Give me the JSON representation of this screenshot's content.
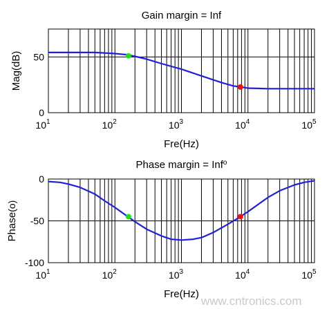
{
  "chart_data": [
    {
      "type": "line",
      "title": "Gain margin = Inf",
      "xlabel": "Fre(Hz)",
      "ylabel": "Mag(dB)",
      "xscale": "log",
      "xlim": [
        10,
        100000
      ],
      "ylim": [
        0,
        75
      ],
      "xticks": [
        {
          "base": "10",
          "exp": "1"
        },
        {
          "base": "10",
          "exp": "2"
        },
        {
          "base": "10",
          "exp": "3"
        },
        {
          "base": "10",
          "exp": "4"
        },
        {
          "base": "10",
          "exp": "5"
        }
      ],
      "yticks": [
        "50",
        "0"
      ],
      "grid": true,
      "series": [
        {
          "color": "#1f1fdf",
          "x": [
            10,
            20,
            50,
            100,
            150,
            200,
            300,
            500,
            1000,
            2000,
            4000,
            6000,
            8000,
            10000,
            20000,
            50000,
            100000
          ],
          "y": [
            54,
            54,
            54,
            53,
            52,
            50.5,
            48,
            44,
            39,
            33,
            27,
            24,
            23,
            22,
            21.5,
            21.5,
            21.5
          ]
        }
      ],
      "markers": [
        {
          "x": 160,
          "y": 51,
          "color": "#22dd22"
        },
        {
          "x": 7700,
          "y": 23,
          "color": "#ee1111"
        }
      ]
    },
    {
      "type": "line",
      "title": "Phase margin = Inf",
      "title_suffix": "o",
      "xlabel": "Fre(Hz)",
      "ylabel": "Phase",
      "ylabel_unit": "(o)",
      "xscale": "log",
      "xlim": [
        10,
        100000
      ],
      "ylim": [
        -100,
        0
      ],
      "xticks": [
        {
          "base": "10",
          "exp": "1"
        },
        {
          "base": "10",
          "exp": "2"
        },
        {
          "base": "10",
          "exp": "3"
        },
        {
          "base": "10",
          "exp": "4"
        },
        {
          "base": "10",
          "exp": "5"
        }
      ],
      "yticks": [
        "0",
        "-50",
        "-100"
      ],
      "grid": true,
      "series": [
        {
          "color": "#1f1fdf",
          "x": [
            10,
            15,
            20,
            30,
            50,
            70,
            100,
            150,
            200,
            300,
            500,
            700,
            1000,
            1500,
            2000,
            3000,
            5000,
            7000,
            10000,
            15000,
            20000,
            30000,
            50000,
            70000,
            100000
          ],
          "y": [
            -3,
            -4,
            -6,
            -10,
            -18,
            -26,
            -34,
            -44,
            -51,
            -60,
            -68,
            -72,
            -73,
            -72,
            -70,
            -64,
            -54,
            -47,
            -39,
            -29,
            -22,
            -14,
            -7,
            -4,
            -2
          ]
        }
      ],
      "markers": [
        {
          "x": 160,
          "y": -45,
          "color": "#22dd22"
        },
        {
          "x": 7700,
          "y": -45,
          "color": "#ee1111"
        }
      ]
    }
  ],
  "watermark": "www.cntronics.com"
}
